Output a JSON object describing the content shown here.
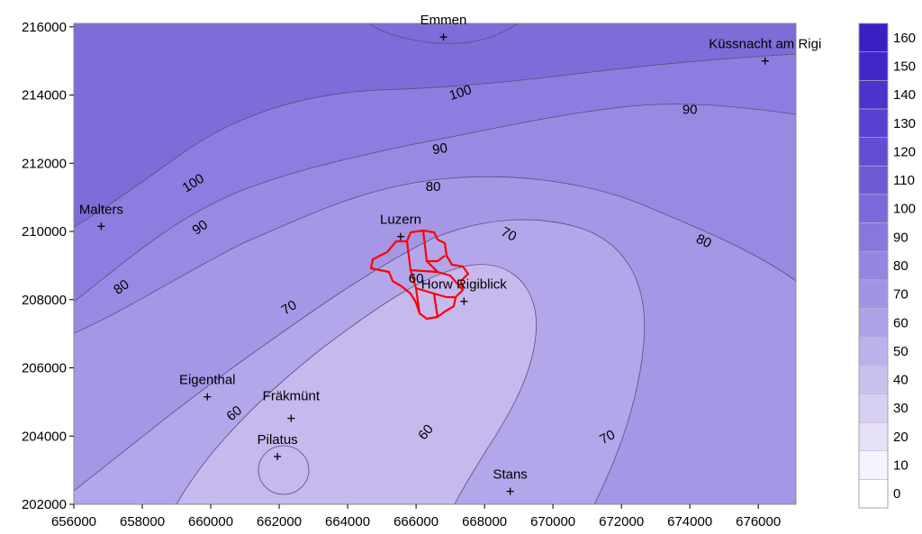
{
  "map": {
    "x_ticks": [
      656000,
      658000,
      660000,
      662000,
      664000,
      666000,
      668000,
      670000,
      672000,
      674000,
      676000
    ],
    "y_ticks": [
      202000,
      204000,
      206000,
      208000,
      210000,
      212000,
      214000,
      216000
    ],
    "x_range": [
      656000,
      677100
    ],
    "y_range": [
      202000,
      216100
    ],
    "contour_labels": [
      {
        "text": "100",
        "x": 667300,
        "y": 214050,
        "angle": -18
      },
      {
        "text": "100",
        "x": 659500,
        "y": 211400,
        "angle": -32
      },
      {
        "text": "90",
        "x": 666700,
        "y": 212400,
        "angle": -8
      },
      {
        "text": "90",
        "x": 659700,
        "y": 210100,
        "angle": -35
      },
      {
        "text": "90",
        "x": 674000,
        "y": 213550,
        "angle": 0
      },
      {
        "text": "80",
        "x": 666500,
        "y": 211300,
        "angle": 0
      },
      {
        "text": "80",
        "x": 657400,
        "y": 208350,
        "angle": -35
      },
      {
        "text": "80",
        "x": 674400,
        "y": 209700,
        "angle": 25
      },
      {
        "text": "70",
        "x": 668700,
        "y": 209900,
        "angle": 28
      },
      {
        "text": "70",
        "x": 662300,
        "y": 207750,
        "angle": -32
      },
      {
        "text": "70",
        "x": 671600,
        "y": 203950,
        "angle": -28
      },
      {
        "text": "60",
        "x": 666000,
        "y": 208600,
        "angle": 0
      },
      {
        "text": "60",
        "x": 660700,
        "y": 204650,
        "angle": -40
      },
      {
        "text": "60",
        "x": 666300,
        "y": 204100,
        "angle": -50
      }
    ],
    "places": [
      {
        "name": "Emmen",
        "x": 666800,
        "y": 215700,
        "dx": 0,
        "dy": -14,
        "anchor": "middle"
      },
      {
        "name": "Küssnacht am Rigi",
        "x": 676200,
        "y": 215000,
        "dx": 0,
        "dy": -14,
        "anchor": "middle"
      },
      {
        "name": "Malters",
        "x": 656800,
        "y": 210150,
        "dx": 0,
        "dy": -14,
        "anchor": "middle"
      },
      {
        "name": "Luzern",
        "x": 665550,
        "y": 209850,
        "dx": 0,
        "dy": -14,
        "anchor": "middle"
      },
      {
        "name": "Horw Rigiblick",
        "x": 667400,
        "y": 207950,
        "dx": 0,
        "dy": -14,
        "anchor": "middle"
      },
      {
        "name": "Eigenthal",
        "x": 659900,
        "y": 205150,
        "dx": 0,
        "dy": -14,
        "anchor": "middle"
      },
      {
        "name": "Fräkmünt",
        "x": 662350,
        "y": 204520,
        "dx": 0,
        "dy": -20,
        "anchor": "middle"
      },
      {
        "name": "Pilatus",
        "x": 661950,
        "y": 203400,
        "dx": 0,
        "dy": -14,
        "anchor": "middle"
      },
      {
        "name": "Stans",
        "x": 668750,
        "y": 202380,
        "dx": 0,
        "dy": -14,
        "anchor": "middle"
      }
    ]
  },
  "legend": {
    "levels": [
      0,
      10,
      20,
      30,
      40,
      50,
      60,
      70,
      80,
      90,
      100,
      110,
      120,
      130,
      140,
      150,
      160
    ],
    "colors": [
      "#ffffff",
      "#f5f3fd",
      "#e6e0f7",
      "#d8d0f2",
      "#cac0ee",
      "#bcb1ea",
      "#aea1e6",
      "#a193e3",
      "#9485e0",
      "#8877dd",
      "#7c68da",
      "#705bd7",
      "#644dd3",
      "#5840d0",
      "#4c33cc",
      "#4127c9",
      "#3b1ec4"
    ]
  },
  "colors": {
    "band_50_60": "#c6b9ee",
    "band_60_70": "#b4a6ea",
    "band_70_80": "#a596e6",
    "band_80_90": "#9889e3",
    "band_90_100": "#8d7de0",
    "band_100_110": "#7f6cd9",
    "boundary": "#ff0000"
  }
}
